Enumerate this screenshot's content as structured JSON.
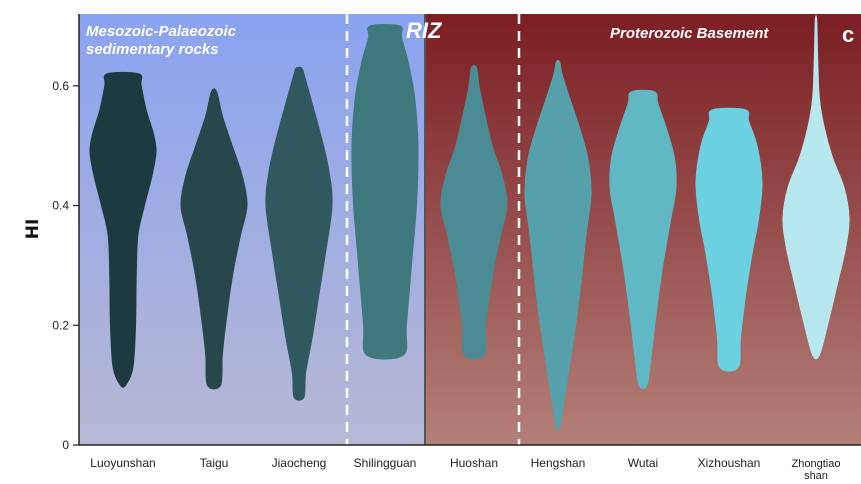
{
  "chart_data": {
    "type": "violin",
    "panel_label": "c",
    "ylabel": "HI",
    "ylim": [
      0,
      0.72
    ],
    "yticks": [
      0,
      0.2,
      0.4,
      0.6
    ],
    "ytick_labels": [
      "0",
      "0.2",
      "0.4",
      "0.6"
    ],
    "regions": [
      {
        "label_lines": [
          "Mesozoic-Palaeozoic",
          "sedimentary rocks"
        ],
        "color_top": "#8aa3f0",
        "color_bottom": "#b7b8d4"
      },
      {
        "label_lines": [
          "RIZ"
        ]
      },
      {
        "label_lines": [
          "Proterozoic Basement"
        ],
        "color_top": "#7c1e23",
        "color_bottom": "#b38077"
      }
    ],
    "categories": [
      "Luoyunshan",
      "Taigu",
      "Jiaocheng",
      "Shilingguan",
      "Huoshan",
      "Hengshan",
      "Wutai",
      "Xizhoushan",
      "Zhongtiao shan"
    ],
    "category_label_lines": [
      [
        "Luoyunshan"
      ],
      [
        "Taigu"
      ],
      [
        "Jiaocheng"
      ],
      [
        "Shilingguan"
      ],
      [
        "Huoshan"
      ],
      [
        "Hengshan"
      ],
      [
        "Wutai"
      ],
      [
        "Xizhoushan"
      ],
      [
        "Zhongtiao",
        "shan"
      ]
    ],
    "series": [
      {
        "name": "Luoyunshan",
        "min": 0.1,
        "max": 0.62,
        "color": "#1c3a3f",
        "profile": [
          [
            0.1,
            0.08
          ],
          [
            0.13,
            0.3
          ],
          [
            0.2,
            0.38
          ],
          [
            0.28,
            0.4
          ],
          [
            0.35,
            0.45
          ],
          [
            0.4,
            0.65
          ],
          [
            0.45,
            0.88
          ],
          [
            0.49,
            1.0
          ],
          [
            0.52,
            0.92
          ],
          [
            0.56,
            0.7
          ],
          [
            0.6,
            0.55
          ],
          [
            0.62,
            0.48
          ]
        ]
      },
      {
        "name": "Taigu",
        "min": 0.1,
        "max": 0.59,
        "color": "#27474c",
        "profile": [
          [
            0.1,
            0.2
          ],
          [
            0.15,
            0.25
          ],
          [
            0.2,
            0.35
          ],
          [
            0.28,
            0.55
          ],
          [
            0.35,
            0.8
          ],
          [
            0.4,
            1.0
          ],
          [
            0.45,
            0.85
          ],
          [
            0.5,
            0.55
          ],
          [
            0.55,
            0.25
          ],
          [
            0.59,
            0.08
          ]
        ]
      },
      {
        "name": "Jiaocheng",
        "min": 0.08,
        "max": 0.63,
        "color": "#30595f",
        "profile": [
          [
            0.08,
            0.15
          ],
          [
            0.12,
            0.2
          ],
          [
            0.18,
            0.4
          ],
          [
            0.25,
            0.6
          ],
          [
            0.32,
            0.8
          ],
          [
            0.4,
            1.0
          ],
          [
            0.46,
            0.9
          ],
          [
            0.52,
            0.65
          ],
          [
            0.58,
            0.35
          ],
          [
            0.62,
            0.15
          ],
          [
            0.63,
            0.08
          ]
        ]
      },
      {
        "name": "Shilingguan",
        "min": 0.15,
        "max": 0.7,
        "color": "#3f787d",
        "profile": [
          [
            0.15,
            0.55
          ],
          [
            0.2,
            0.65
          ],
          [
            0.3,
            0.8
          ],
          [
            0.4,
            0.95
          ],
          [
            0.5,
            1.0
          ],
          [
            0.58,
            0.9
          ],
          [
            0.64,
            0.7
          ],
          [
            0.68,
            0.5
          ],
          [
            0.7,
            0.45
          ]
        ]
      },
      {
        "name": "Huoshan",
        "min": 0.15,
        "max": 0.63,
        "color": "#4b8c94",
        "profile": [
          [
            0.15,
            0.3
          ],
          [
            0.2,
            0.35
          ],
          [
            0.28,
            0.55
          ],
          [
            0.35,
            0.8
          ],
          [
            0.4,
            1.0
          ],
          [
            0.45,
            0.85
          ],
          [
            0.5,
            0.55
          ],
          [
            0.56,
            0.3
          ],
          [
            0.6,
            0.15
          ],
          [
            0.63,
            0.08
          ]
        ]
      },
      {
        "name": "Hengshan",
        "min": 0.03,
        "max": 0.64,
        "color": "#55a0ab",
        "profile": [
          [
            0.03,
            0.05
          ],
          [
            0.08,
            0.2
          ],
          [
            0.15,
            0.4
          ],
          [
            0.25,
            0.65
          ],
          [
            0.35,
            0.85
          ],
          [
            0.42,
            1.0
          ],
          [
            0.48,
            0.9
          ],
          [
            0.53,
            0.65
          ],
          [
            0.58,
            0.35
          ],
          [
            0.62,
            0.12
          ],
          [
            0.64,
            0.05
          ]
        ]
      },
      {
        "name": "Wutai",
        "min": 0.1,
        "max": 0.59,
        "color": "#5fb8c4",
        "profile": [
          [
            0.1,
            0.12
          ],
          [
            0.15,
            0.25
          ],
          [
            0.22,
            0.4
          ],
          [
            0.3,
            0.6
          ],
          [
            0.38,
            0.85
          ],
          [
            0.43,
            1.0
          ],
          [
            0.48,
            0.95
          ],
          [
            0.53,
            0.7
          ],
          [
            0.57,
            0.45
          ],
          [
            0.59,
            0.35
          ]
        ]
      },
      {
        "name": "Xizhoushan",
        "min": 0.13,
        "max": 0.56,
        "color": "#6bd0e0",
        "profile": [
          [
            0.13,
            0.28
          ],
          [
            0.18,
            0.35
          ],
          [
            0.25,
            0.5
          ],
          [
            0.32,
            0.7
          ],
          [
            0.38,
            0.9
          ],
          [
            0.44,
            1.0
          ],
          [
            0.5,
            0.85
          ],
          [
            0.54,
            0.6
          ],
          [
            0.56,
            0.5
          ]
        ]
      },
      {
        "name": "Zhongtiao shan",
        "min": 0.15,
        "max": 0.71,
        "color": "#b8e8ef",
        "profile": [
          [
            0.15,
            0.1
          ],
          [
            0.2,
            0.35
          ],
          [
            0.27,
            0.65
          ],
          [
            0.33,
            0.9
          ],
          [
            0.38,
            1.0
          ],
          [
            0.43,
            0.85
          ],
          [
            0.48,
            0.5
          ],
          [
            0.53,
            0.25
          ],
          [
            0.58,
            0.1
          ],
          [
            0.65,
            0.05
          ],
          [
            0.71,
            0.02
          ]
        ]
      }
    ]
  }
}
